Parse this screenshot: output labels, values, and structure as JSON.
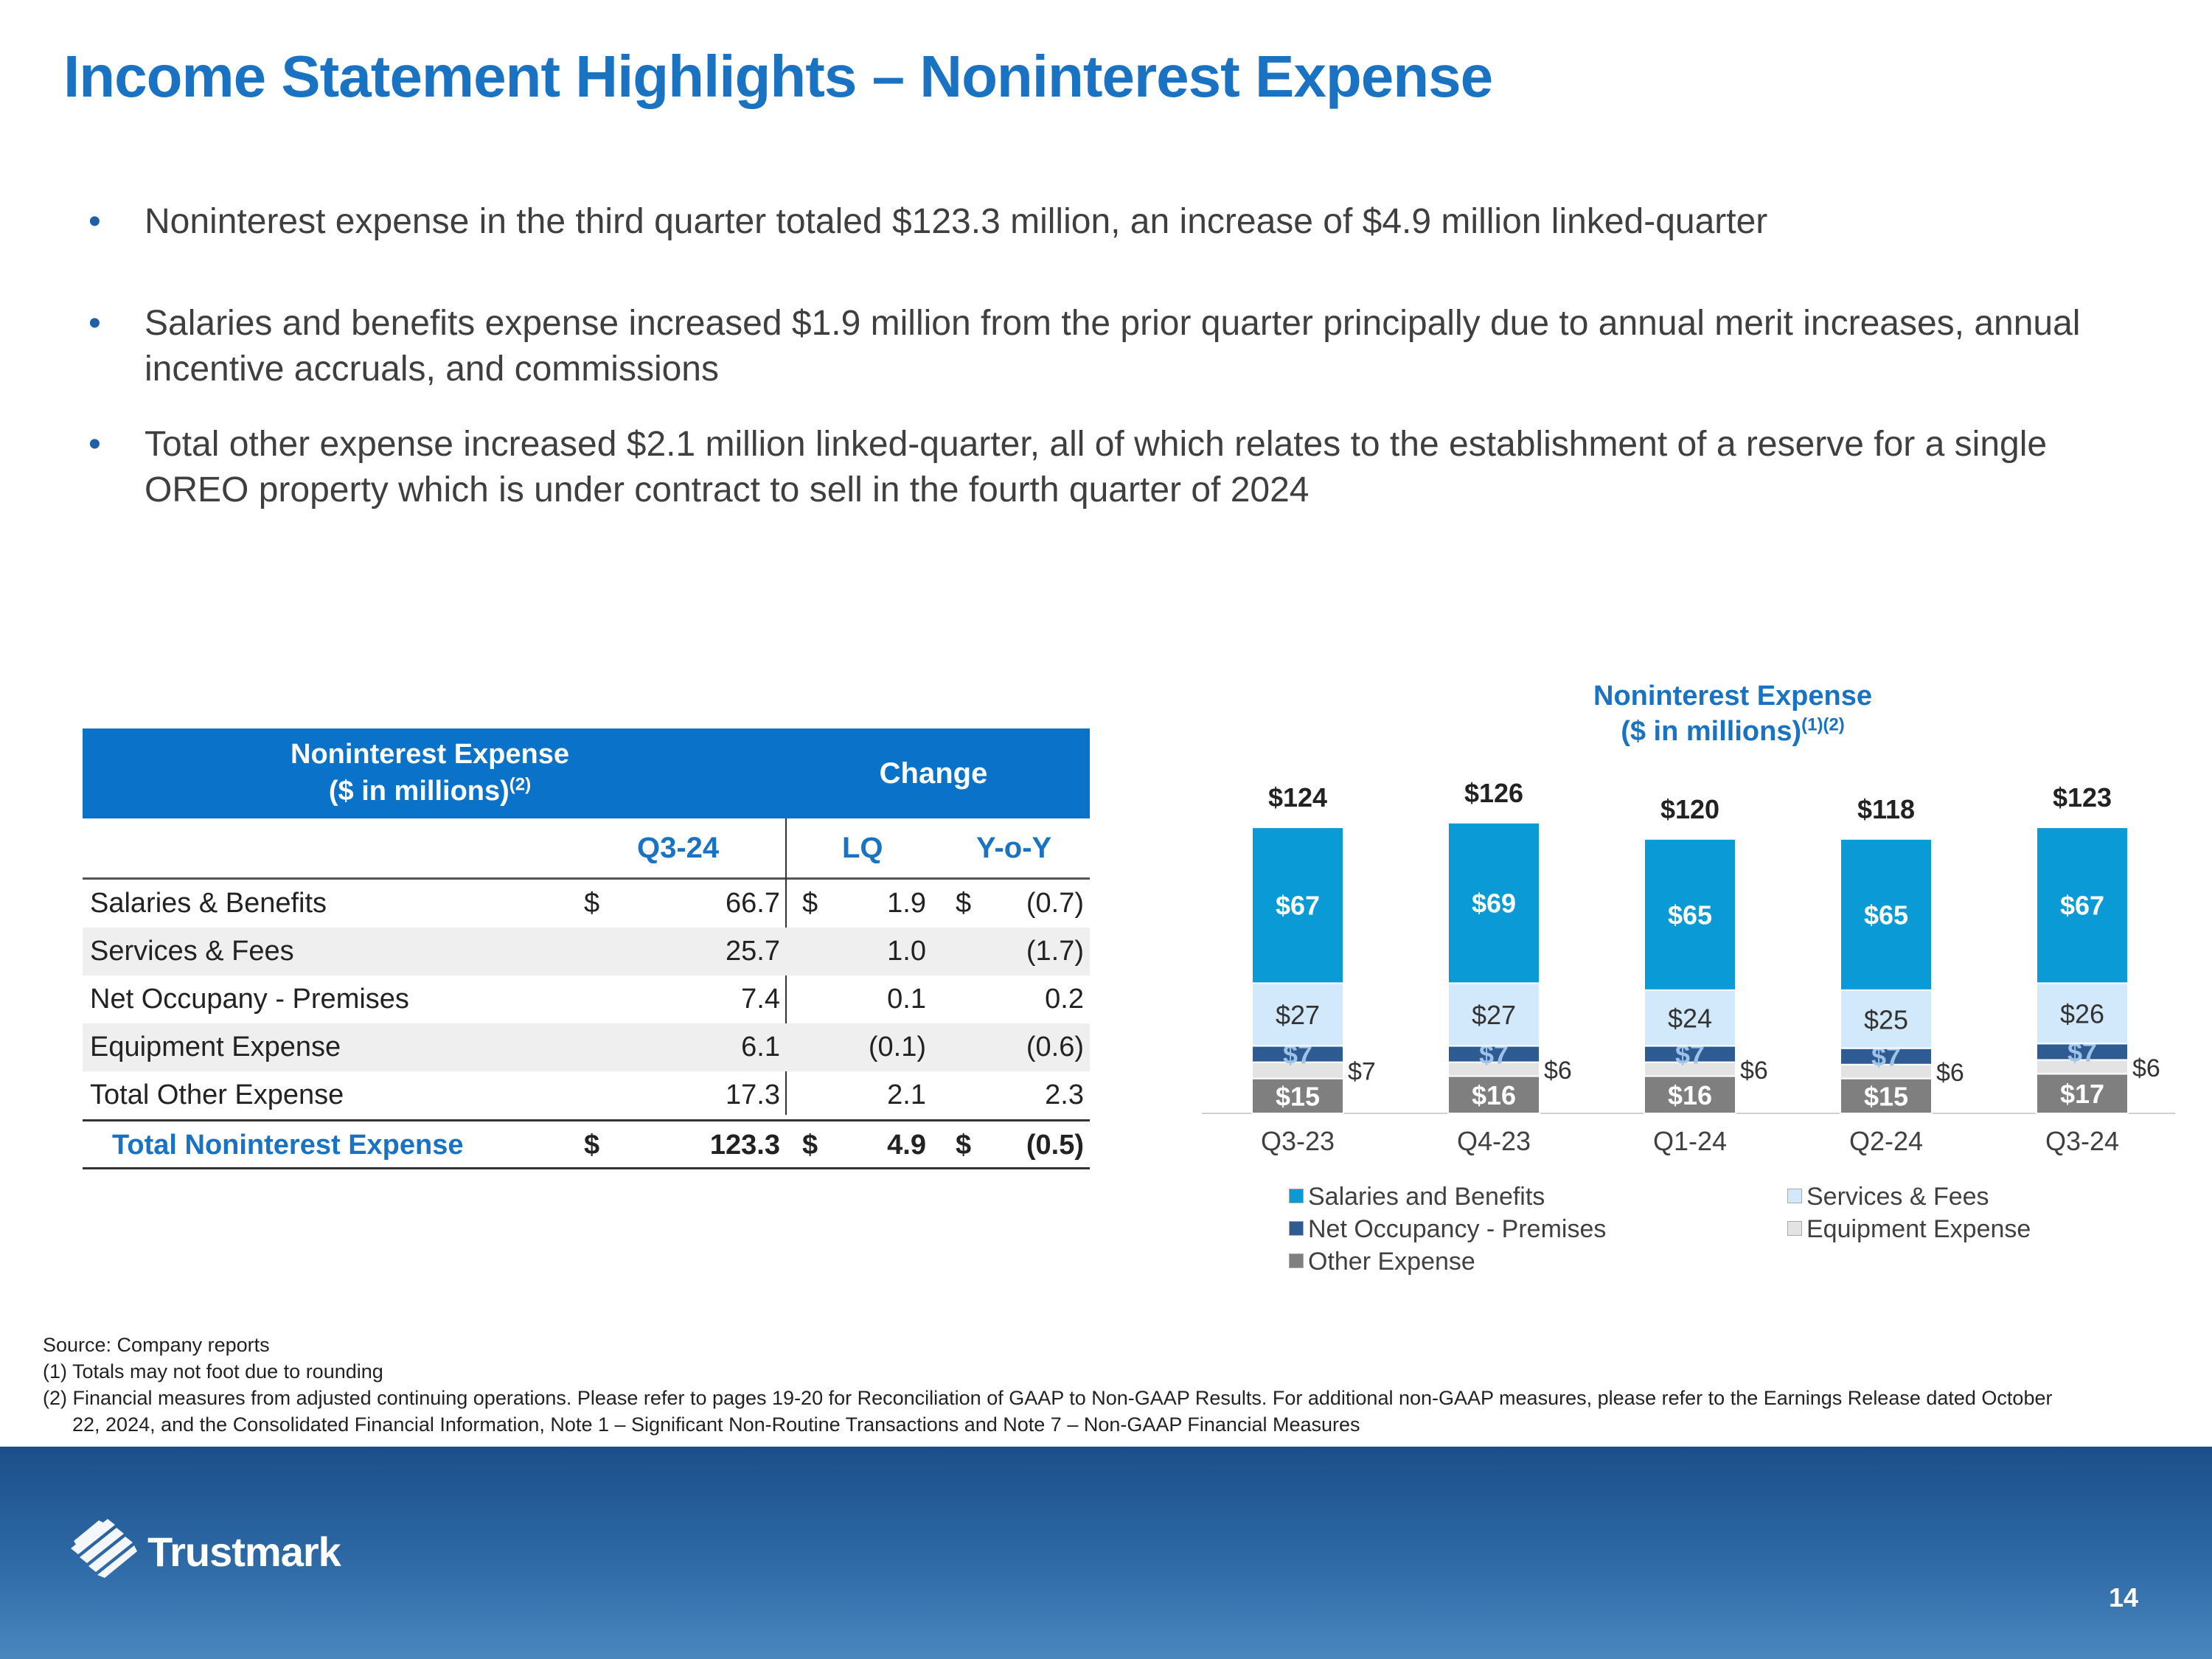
{
  "title": "Income Statement Highlights – Noninterest Expense",
  "bullets": [
    "Noninterest expense in the third quarter totaled $123.3 million, an increase of $4.9 million linked-quarter",
    "Salaries and benefits expense increased $1.9 million from the prior quarter principally due to annual merit increases, annual incentive accruals, and commissions",
    "Total other expense increased $2.1 million linked-quarter, all of which relates to the establishment of a reserve for a single OREO property which is under contract to sell in the fourth quarter of 2024"
  ],
  "bullet_glyph": "•",
  "table": {
    "header_line1": "Noninterest Expense",
    "header_line2": "($ in millions)",
    "header_sup": "(2)",
    "change_header": "Change",
    "col_q": "Q3-24",
    "col_lq": "LQ",
    "col_yoy": "Y-o-Y",
    "dollar": "$",
    "rows": [
      {
        "label": "Salaries & Benefits",
        "q": "66.7",
        "lq": "1.9",
        "yoy": "(0.7)"
      },
      {
        "label": "Services & Fees",
        "q": "25.7",
        "lq": "1.0",
        "yoy": "(1.7)"
      },
      {
        "label": "Net Occupany - Premises",
        "q": "7.4",
        "lq": "0.1",
        "yoy": "0.2"
      },
      {
        "label": "Equipment Expense",
        "q": "6.1",
        "lq": "(0.1)",
        "yoy": "(0.6)"
      },
      {
        "label": "Total Other Expense",
        "q": "17.3",
        "lq": "2.1",
        "yoy": "2.3"
      }
    ],
    "total": {
      "label": "Total Noninterest Expense",
      "q": "123.3",
      "lq": "4.9",
      "yoy": "(0.5)"
    }
  },
  "chart_data": {
    "type": "bar",
    "stacked": true,
    "title": "Noninterest Expense",
    "subtitle": "($ in millions)",
    "subtitle_sup": "(1)(2)",
    "categories": [
      "Q3-23",
      "Q4-23",
      "Q1-24",
      "Q2-24",
      "Q3-24"
    ],
    "totals": [
      124,
      126,
      120,
      118,
      123
    ],
    "series": [
      {
        "name": "Other Expense",
        "values": [
          15,
          16,
          16,
          15,
          17
        ],
        "color": "#7f7f7f"
      },
      {
        "name": "Equipment Expense",
        "values": [
          7,
          6,
          6,
          6,
          6
        ],
        "color": "#e3e3e3"
      },
      {
        "name": "Net Occupancy - Premises",
        "values": [
          7,
          7,
          7,
          7,
          7
        ],
        "color": "#2f5b93"
      },
      {
        "name": "Services & Fees",
        "values": [
          27,
          27,
          24,
          25,
          26
        ],
        "color": "#d2e9fb"
      },
      {
        "name": "Salaries and Benefits",
        "values": [
          67,
          69,
          65,
          65,
          67
        ],
        "color": "#0a9ad6"
      }
    ],
    "value_prefix": "$",
    "ylim": [
      0,
      130
    ]
  },
  "legend": [
    {
      "name": "Salaries and Benefits",
      "color": "#0a9ad6"
    },
    {
      "name": "Services & Fees",
      "color": "#d2e9fb"
    },
    {
      "name": "Net Occupancy - Premises",
      "color": "#2f5b93"
    },
    {
      "name": "Equipment Expense",
      "color": "#e3e3e3"
    },
    {
      "name": "Other Expense",
      "color": "#7f7f7f"
    }
  ],
  "footnotes": [
    "Source: Company reports",
    "(1) Totals may not foot due to rounding",
    "(2) Financial measures from adjusted continuing operations. Please refer to pages 19-20 for Reconciliation of GAAP to Non-GAAP Results. For additional non-GAAP measures, please refer to the Earnings Release dated October",
    "22, 2024, and the Consolidated Financial Information, Note 1 – Significant Non-Routine Transactions and Note 7 – Non-GAAP Financial Measures"
  ],
  "brand": "Trustmark",
  "page_number": "14"
}
